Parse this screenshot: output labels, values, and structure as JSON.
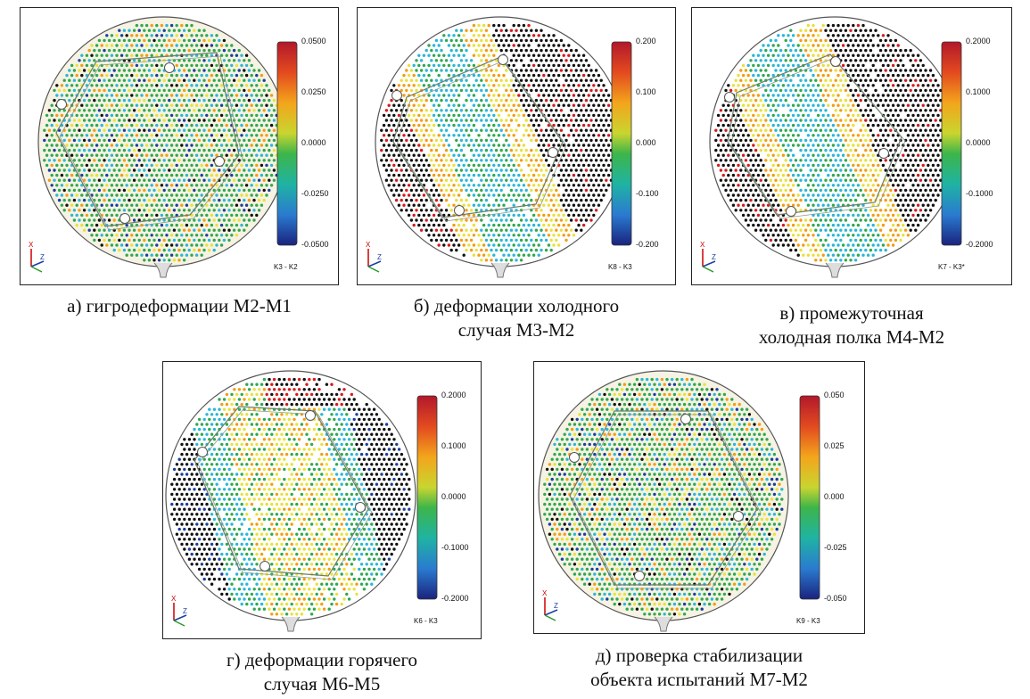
{
  "panels": [
    {
      "id": "a",
      "caption": [
        "а) гигродеформации М2-М1"
      ],
      "ticks": [
        "0.0500",
        "0.0250",
        "0.0000",
        "-0.0250",
        "-0.0500"
      ],
      "label": "K3 - K2",
      "pattern": "noise"
    },
    {
      "id": "b",
      "caption": [
        "б) деформации холодного",
        "случая М3-М2"
      ],
      "ticks": [
        "0.200",
        "0.100",
        "0.000",
        "-0.100",
        "-0.200"
      ],
      "label": "K8 - K3",
      "pattern": "cold"
    },
    {
      "id": "c",
      "caption": [
        "в) промежуточная",
        "холодная полка М4-М2"
      ],
      "ticks": [
        "0.2000",
        "0.1000",
        "0.0000",
        "-0.1000",
        "-0.2000"
      ],
      "label": "K7 - K3*",
      "pattern": "cold2"
    },
    {
      "id": "d",
      "caption": [
        "г) деформации горячего",
        "случая М6-М5"
      ],
      "ticks": [
        "0.2000",
        "0.1000",
        "0.0000",
        "-0.1000",
        "-0.2000"
      ],
      "label": "K6 - K3",
      "pattern": "hot"
    },
    {
      "id": "e",
      "caption": [
        "д) проверка стабилизации",
        "объекта испытаний М7-М2"
      ],
      "ticks": [
        "0.050",
        "0.025",
        "0.000",
        "-0.025",
        "-0.050"
      ],
      "label": "K9 - K3",
      "pattern": "noise"
    }
  ],
  "colors": {
    "red": "#d7191c",
    "orange": "#f39c12",
    "yellow": "#e8e13a",
    "green": "#2fa84f",
    "cyan": "#2bb6d9",
    "blue": "#1a3fa0",
    "black": "#111111"
  },
  "axes_letters": {
    "x": "X",
    "z": "Z"
  }
}
